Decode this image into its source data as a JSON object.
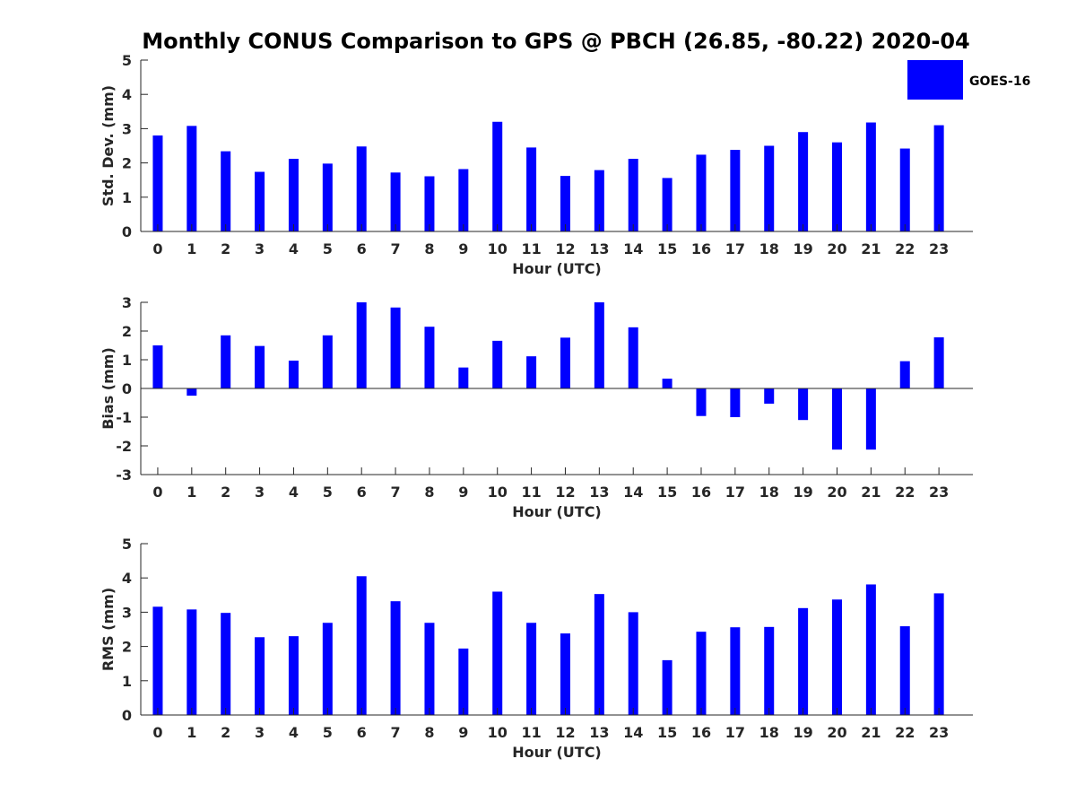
{
  "chart_data": {
    "title": "Monthly CONUS Comparison to GPS @ PBCH (26.85, -80.22) 2020-04",
    "legend": {
      "label": "GOES-16",
      "color": "#0000ff",
      "placement": "top-right"
    },
    "panels": [
      {
        "type": "bar",
        "ylabel": "Std. Dev. (mm)",
        "xlabel": "Hour (UTC)",
        "ylim": [
          0,
          5
        ],
        "yticks": [
          0,
          1,
          2,
          3,
          4,
          5
        ],
        "categories": [
          "0",
          "1",
          "2",
          "3",
          "4",
          "5",
          "6",
          "7",
          "8",
          "9",
          "10",
          "11",
          "12",
          "13",
          "14",
          "15",
          "16",
          "17",
          "18",
          "19",
          "20",
          "21",
          "22",
          "23"
        ],
        "series": [
          {
            "name": "GOES-16",
            "values": [
              2.8,
              3.08,
              2.34,
              1.74,
              2.12,
              1.98,
              2.48,
              1.72,
              1.61,
              1.82,
              3.2,
              2.45,
              1.62,
              1.79,
              2.12,
              1.56,
              2.24,
              2.38,
              2.5,
              2.9,
              2.6,
              3.18,
              2.42,
              3.1
            ]
          }
        ]
      },
      {
        "type": "bar",
        "ylabel": "Bias (mm)",
        "xlabel": "Hour (UTC)",
        "ylim": [
          -3,
          3
        ],
        "yticks": [
          -3,
          -2,
          -1,
          0,
          1,
          2,
          3
        ],
        "categories": [
          "0",
          "1",
          "2",
          "3",
          "4",
          "5",
          "6",
          "7",
          "8",
          "9",
          "10",
          "11",
          "12",
          "13",
          "14",
          "15",
          "16",
          "17",
          "18",
          "19",
          "20",
          "21",
          "22",
          "23"
        ],
        "series": [
          {
            "name": "GOES-16",
            "values": [
              1.5,
              -0.25,
              1.85,
              1.48,
              0.97,
              1.85,
              3.0,
              2.82,
              2.15,
              0.73,
              1.66,
              1.12,
              1.77,
              3.0,
              2.13,
              0.34,
              -0.96,
              -1.0,
              -0.53,
              -1.1,
              -2.13,
              -2.13,
              0.95,
              1.78
            ]
          }
        ]
      },
      {
        "type": "bar",
        "ylabel": "RMS (mm)",
        "xlabel": "Hour (UTC)",
        "ylim": [
          0,
          5
        ],
        "yticks": [
          0,
          1,
          2,
          3,
          4,
          5
        ],
        "categories": [
          "0",
          "1",
          "2",
          "3",
          "4",
          "5",
          "6",
          "7",
          "8",
          "9",
          "10",
          "11",
          "12",
          "13",
          "14",
          "15",
          "16",
          "17",
          "18",
          "19",
          "20",
          "21",
          "22",
          "23"
        ],
        "series": [
          {
            "name": "GOES-16",
            "values": [
              3.16,
              3.08,
              2.98,
              2.27,
              2.3,
              2.69,
              4.05,
              3.32,
              2.69,
              1.94,
              3.6,
              2.69,
              2.38,
              3.53,
              3.0,
              1.6,
              2.43,
              2.56,
              2.57,
              3.12,
              3.37,
              3.81,
              2.59,
              3.55
            ]
          }
        ]
      }
    ]
  }
}
